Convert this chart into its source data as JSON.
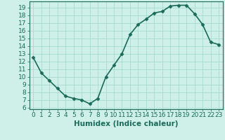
{
  "x": [
    0,
    1,
    2,
    3,
    4,
    5,
    6,
    7,
    8,
    9,
    10,
    11,
    12,
    13,
    14,
    15,
    16,
    17,
    18,
    19,
    20,
    21,
    22,
    23
  ],
  "y": [
    12.5,
    10.5,
    9.5,
    8.5,
    7.5,
    7.2,
    7.0,
    6.5,
    7.2,
    10.0,
    11.5,
    13.0,
    15.5,
    16.8,
    17.5,
    18.3,
    18.5,
    19.2,
    19.3,
    19.3,
    18.2,
    16.8,
    14.5,
    14.2
  ],
  "line_color": "#1a6b5a",
  "bg_color": "#cef0e8",
  "grid_color": "#9dd8cc",
  "xlabel": "Humidex (Indice chaleur)",
  "xlim": [
    -0.5,
    23.5
  ],
  "ylim": [
    5.8,
    19.8
  ],
  "yticks": [
    6,
    7,
    8,
    9,
    10,
    11,
    12,
    13,
    14,
    15,
    16,
    17,
    18,
    19
  ],
  "xticks": [
    0,
    1,
    2,
    3,
    4,
    5,
    6,
    7,
    8,
    9,
    10,
    11,
    12,
    13,
    14,
    15,
    16,
    17,
    18,
    19,
    20,
    21,
    22,
    23
  ],
  "marker": "D",
  "markersize": 2.5,
  "linewidth": 1.2,
  "font_color": "#1a6b5a",
  "tick_fontsize": 6.5,
  "label_fontsize": 7.5
}
